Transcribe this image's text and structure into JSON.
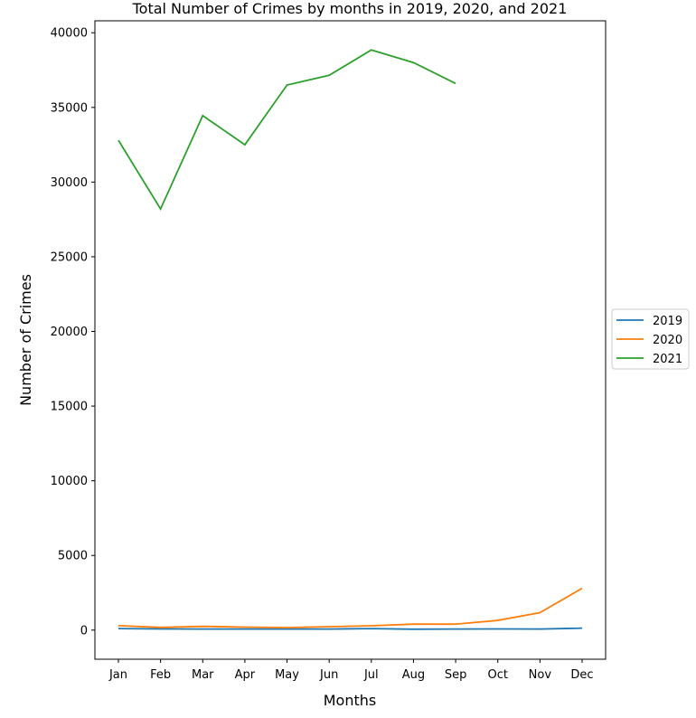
{
  "chart_data": {
    "type": "line",
    "title": "Total Number of Crimes by months in 2019, 2020, and 2021",
    "xlabel": "Months",
    "ylabel": "Number of Crimes",
    "categories": [
      "Jan",
      "Feb",
      "Mar",
      "Apr",
      "May",
      "Jun",
      "Jul",
      "Aug",
      "Sep",
      "Oct",
      "Nov",
      "Dec"
    ],
    "ylim": [
      -1950,
      40800
    ],
    "yticks": [
      0,
      5000,
      10000,
      15000,
      20000,
      25000,
      30000,
      35000,
      40000
    ],
    "grid": false,
    "legend_position": "center-right outside",
    "series": [
      {
        "name": "2019",
        "color": "#1f77b4",
        "values": [
          100,
          80,
          70,
          70,
          70,
          70,
          100,
          60,
          70,
          80,
          70,
          130
        ]
      },
      {
        "name": "2020",
        "color": "#ff7f0e",
        "values": [
          300,
          180,
          250,
          200,
          170,
          230,
          290,
          400,
          400,
          650,
          1170,
          2800
        ]
      },
      {
        "name": "2021",
        "color": "#2ca02c",
        "values": [
          32800,
          28200,
          34450,
          32500,
          36500,
          37150,
          38850,
          38000,
          36600,
          null,
          null,
          null
        ]
      }
    ]
  }
}
